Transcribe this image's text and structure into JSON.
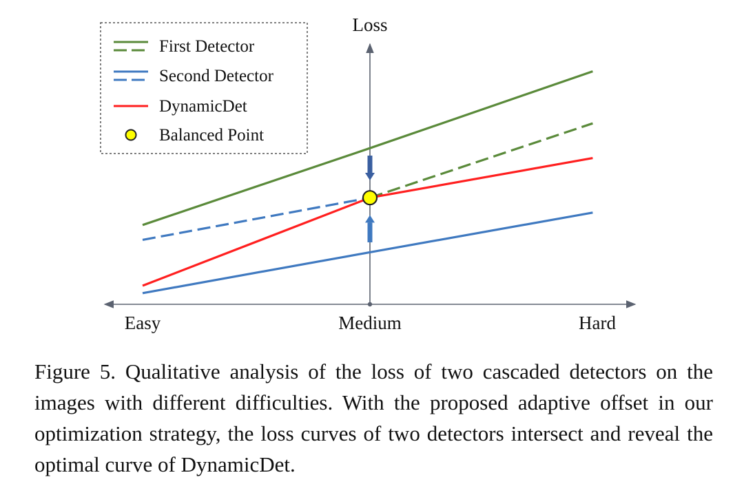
{
  "chart_data": {
    "type": "line",
    "ylabel": "Loss",
    "x_tick_labels": [
      "Easy",
      "Medium",
      "Hard"
    ],
    "x_tick_values": [
      -1,
      0,
      1
    ],
    "xlim": [
      -1.1,
      1.1
    ],
    "ylim": [
      0,
      10
    ],
    "legend_position": "top-left",
    "legend_entries": [
      {
        "label": "First Detector",
        "symbol": "double-dash",
        "color": "#5a8a3a"
      },
      {
        "label": "Second Detector",
        "symbol": "double-dash",
        "color": "#3f79c0"
      },
      {
        "label": "DynamicDet",
        "symbol": "line",
        "color": "#ff1f1f"
      },
      {
        "label": "Balanced Point",
        "symbol": "circle",
        "color": "#ffff00"
      }
    ],
    "series": [
      {
        "key": "first_solid",
        "legend": "First Detector",
        "color": "#5a8a3a",
        "dash": false,
        "points": [
          [
            -1.0,
            3.2
          ],
          [
            0.0,
            6.3
          ],
          [
            0.98,
            9.4
          ]
        ]
      },
      {
        "key": "first_dashed",
        "legend": "First Detector",
        "color": "#5a8a3a",
        "dash": true,
        "points": [
          [
            0.0,
            4.3
          ],
          [
            0.98,
            7.3
          ]
        ]
      },
      {
        "key": "second_dashed",
        "legend": "Second Detector",
        "color": "#3f79c0",
        "dash": true,
        "points": [
          [
            -1.0,
            2.6
          ],
          [
            0.0,
            4.3
          ]
        ]
      },
      {
        "key": "second_solid",
        "legend": "Second Detector",
        "color": "#3f79c0",
        "dash": false,
        "points": [
          [
            -1.0,
            0.45
          ],
          [
            0.0,
            2.1
          ],
          [
            0.98,
            3.7
          ]
        ]
      },
      {
        "key": "dynamicdet",
        "legend": "DynamicDet",
        "color": "#ff1f1f",
        "dash": false,
        "points": [
          [
            -1.0,
            0.75
          ],
          [
            0.0,
            4.3
          ],
          [
            0.98,
            5.9
          ]
        ]
      }
    ],
    "balanced_point": {
      "x": 0.0,
      "y": 4.3,
      "color": "#ffff00"
    },
    "arrows": [
      {
        "from": 6.0,
        "to": 5.0,
        "color": "#3a5fa0",
        "direction": "down"
      },
      {
        "from": 2.5,
        "to": 3.6,
        "color": "#3f79c0",
        "direction": "up"
      }
    ]
  },
  "caption": {
    "text": "Figure 5. Qualitative analysis of the loss of two cascaded detectors on the images with different difficulties. With the proposed adaptive offset in our optimization strategy, the loss curves of two detectors intersect and reveal the optimal curve of DynamicDet."
  }
}
